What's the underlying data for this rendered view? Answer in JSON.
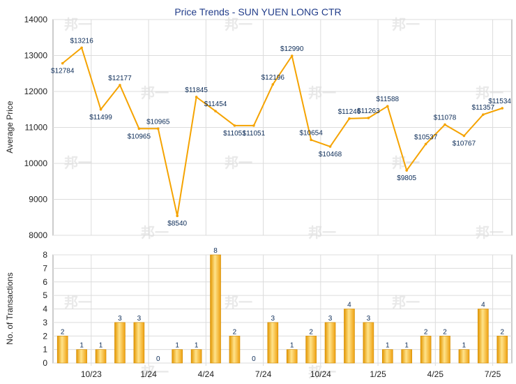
{
  "chart_data": [
    {
      "type": "line",
      "title": "Price Trends - SUN YUEN LONG CTR",
      "ylabel": "Average Price",
      "ylim": [
        8000,
        14000
      ],
      "yticks": [
        "8000",
        "9000",
        "10000",
        "11000",
        "12000",
        "13000",
        "14000"
      ],
      "grid": true,
      "color": "#f5a300",
      "points": [
        {
          "value": 12784,
          "label": "$12784"
        },
        {
          "value": 13216,
          "label": "$13216"
        },
        {
          "value": 11499,
          "label": "$11499"
        },
        {
          "value": 12177,
          "label": "$12177"
        },
        {
          "value": 10965,
          "label": "$10965"
        },
        {
          "value": 10965,
          "label": "$10965"
        },
        {
          "value": 8540,
          "label": "$8540"
        },
        {
          "value": 11845,
          "label": "$11845"
        },
        {
          "value": 11454,
          "label": "$11454"
        },
        {
          "value": 11051,
          "label": "$11051"
        },
        {
          "value": 11051,
          "label": "$11051"
        },
        {
          "value": 12196,
          "label": "$12196"
        },
        {
          "value": 12990,
          "label": "$12990"
        },
        {
          "value": 10654,
          "label": "$10654"
        },
        {
          "value": 10468,
          "label": "$10468"
        },
        {
          "value": 11246,
          "label": "$11246"
        },
        {
          "value": 11263,
          "label": "$11263"
        },
        {
          "value": 11588,
          "label": "$11588"
        },
        {
          "value": 9805,
          "label": "$9805"
        },
        {
          "value": 10537,
          "label": "$10537"
        },
        {
          "value": 11078,
          "label": "$11078"
        },
        {
          "value": 10767,
          "label": "$10767"
        },
        {
          "value": 11357,
          "label": "$11357"
        },
        {
          "value": 11534,
          "label": "$11534"
        }
      ]
    },
    {
      "type": "bar",
      "ylabel": "No. of Transactions",
      "ylim": [
        0,
        8
      ],
      "yticks": [
        "0",
        "1",
        "2",
        "3",
        "4",
        "5",
        "6",
        "7",
        "8"
      ],
      "xticks": [
        "10/23",
        "1/24",
        "4/24",
        "7/24",
        "10/24",
        "1/25",
        "4/25",
        "7/25"
      ],
      "grid": true,
      "color": "#f5a300",
      "values": [
        2,
        1,
        1,
        3,
        3,
        0,
        1,
        1,
        8,
        2,
        0,
        3,
        1,
        2,
        3,
        4,
        3,
        1,
        1,
        2,
        2,
        1,
        4,
        2
      ],
      "labels": [
        "2",
        "1",
        "1",
        "3",
        "3",
        "0",
        "1",
        "1",
        "8",
        "2",
        "0",
        "3",
        "1",
        "2",
        "3",
        "4",
        "3",
        "1",
        "1",
        "2",
        "2",
        "1",
        "4",
        "2"
      ]
    }
  ]
}
